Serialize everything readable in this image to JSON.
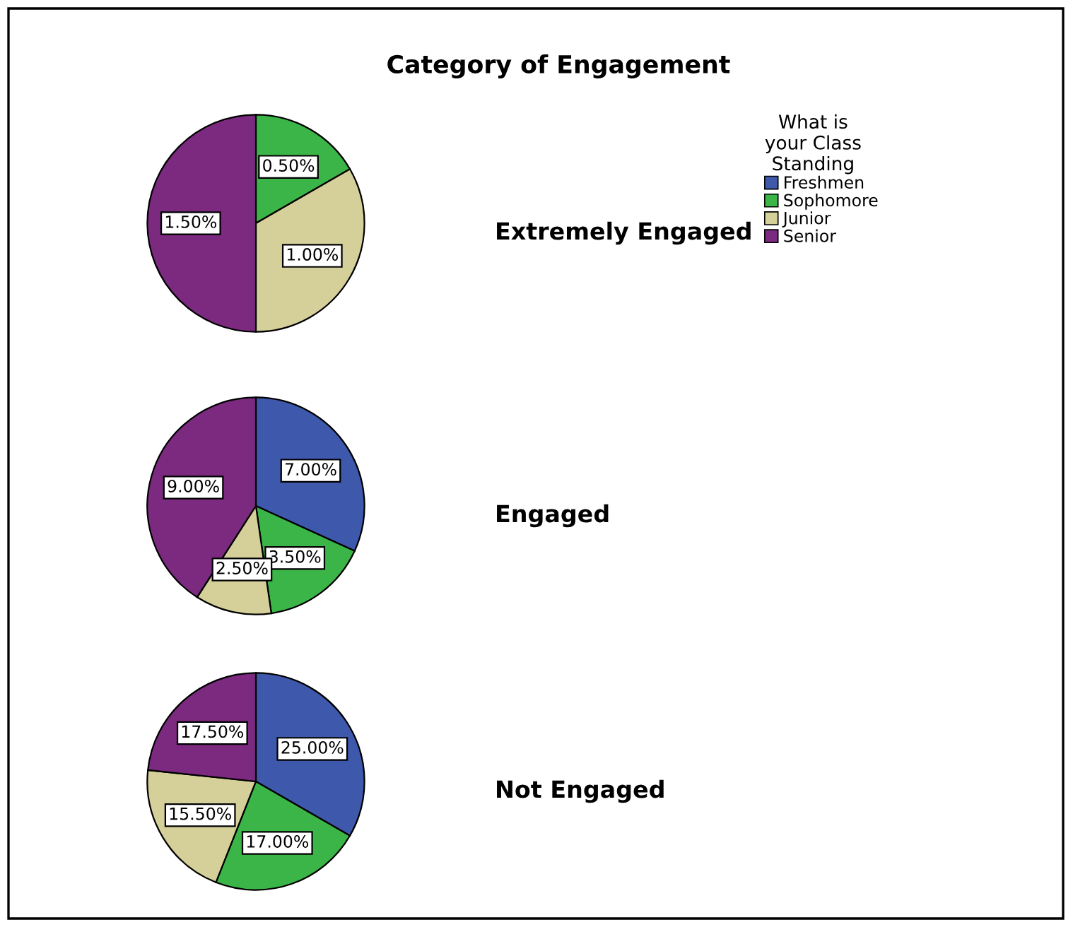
{
  "chart_data": [
    {
      "type": "pie",
      "title": "Category of Engagement",
      "subtitle": "Extremely Engaged",
      "legend": "right",
      "legend_title": "What is\nyour Class\nStanding",
      "categories": [
        "Freshmen",
        "Sophomore",
        "Junior",
        "Senior"
      ],
      "values": [
        0,
        0.5,
        1.0,
        1.5
      ],
      "value_labels": [
        null,
        "0.50%",
        "1.00%",
        "1.50%"
      ],
      "colors": [
        "#3e58ac",
        "#3cb548",
        "#d5d09a",
        "#7b2a7f"
      ]
    },
    {
      "type": "pie",
      "subtitle": "Engaged",
      "values": [
        7.0,
        3.5,
        2.5,
        9.0
      ],
      "value_labels": [
        "7.00%",
        "3.50%",
        "2.50%",
        "9.00%"
      ],
      "colors": [
        "#3e58ac",
        "#3cb548",
        "#d5d09a",
        "#7b2a7f"
      ]
    },
    {
      "type": "pie",
      "subtitle": "Not Engaged",
      "values": [
        25.0,
        17.0,
        15.5,
        17.5
      ],
      "value_labels": [
        "25.00%",
        "17.00%",
        "15.50%",
        "17.50%"
      ],
      "colors": [
        "#3e58ac",
        "#3cb548",
        "#d5d09a",
        "#7b2a7f"
      ]
    }
  ]
}
